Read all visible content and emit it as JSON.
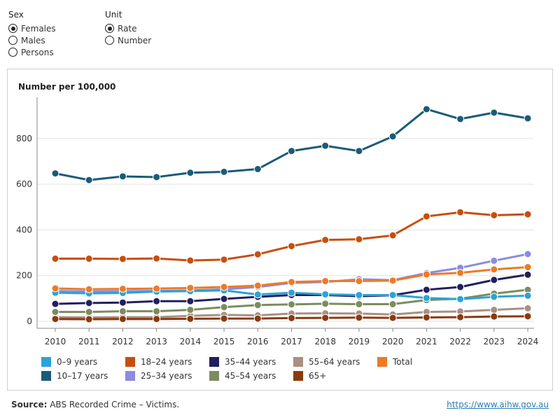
{
  "controls": {
    "sex": {
      "title": "Sex",
      "options": [
        "Females",
        "Males",
        "Persons"
      ],
      "selected": 0
    },
    "unit": {
      "title": "Unit",
      "options": [
        "Rate",
        "Number"
      ],
      "selected": 0
    }
  },
  "footer": {
    "source_label": "Source:",
    "source_text": " ABS Recorded Crime – Victims.",
    "link": "https://www.aihw.gov.au"
  },
  "chart_data": {
    "type": "line",
    "ylabel": "Number per 100,000",
    "xlabel": "",
    "x": [
      2010,
      2011,
      2012,
      2013,
      2014,
      2015,
      2016,
      2017,
      2018,
      2019,
      2020,
      2021,
      2022,
      2023,
      2024
    ],
    "yticks": [
      0,
      200,
      400,
      600,
      800
    ],
    "ylim": [
      0,
      980
    ],
    "grid": true,
    "legend_position": "bottom",
    "series": [
      {
        "name": "0–9 years",
        "color": "#2ba3d6",
        "values": [
          125,
          122,
          124,
          130,
          132,
          135,
          117,
          125,
          118,
          115,
          115,
          102,
          97,
          107,
          112
        ]
      },
      {
        "name": "10–17 years",
        "color": "#1b5b78",
        "values": [
          647,
          618,
          634,
          631,
          650,
          654,
          666,
          745,
          768,
          745,
          809,
          928,
          885,
          913,
          888
        ]
      },
      {
        "name": "18–24 years",
        "color": "#c64f0f",
        "values": [
          274,
          274,
          273,
          275,
          266,
          270,
          293,
          329,
          356,
          359,
          376,
          459,
          477,
          464,
          468
        ]
      },
      {
        "name": "25–34 years",
        "color": "#8b8be0",
        "values": [
          133,
          130,
          132,
          133,
          135,
          140,
          150,
          168,
          172,
          184,
          180,
          211,
          234,
          265,
          294
        ]
      },
      {
        "name": "35–44 years",
        "color": "#221f5e",
        "values": [
          76,
          80,
          82,
          88,
          88,
          98,
          107,
          115,
          115,
          110,
          114,
          138,
          150,
          181,
          204
        ]
      },
      {
        "name": "45–54 years",
        "color": "#7c8c5e",
        "values": [
          41,
          41,
          44,
          44,
          50,
          62,
          71,
          74,
          77,
          75,
          75,
          93,
          99,
          121,
          138
        ]
      },
      {
        "name": "55–64 years",
        "color": "#a89082",
        "values": [
          18,
          17,
          18,
          18,
          24,
          28,
          26,
          34,
          35,
          34,
          30,
          41,
          43,
          50,
          57
        ]
      },
      {
        "name": "65+",
        "color": "#8a3a10",
        "values": [
          10,
          9,
          10,
          10,
          11,
          12,
          12,
          14,
          15,
          16,
          15,
          17,
          18,
          21,
          22
        ]
      },
      {
        "name": "Total",
        "color": "#ee7a26",
        "values": [
          144,
          140,
          142,
          143,
          146,
          150,
          156,
          172,
          176,
          176,
          178,
          205,
          212,
          227,
          237
        ]
      }
    ],
    "legend_order": [
      0,
      2,
      4,
      6,
      8,
      1,
      3,
      5,
      7
    ]
  }
}
